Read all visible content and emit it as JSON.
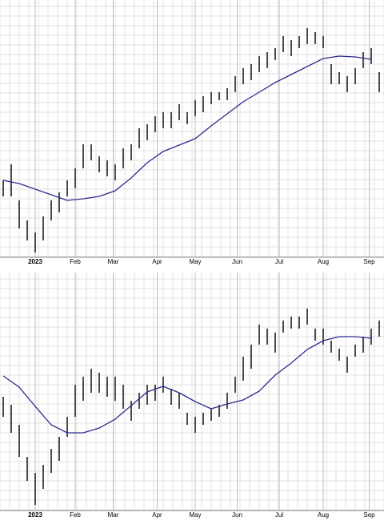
{
  "chart_data": [
    {
      "type": "ohlc",
      "bar_color": "#000000",
      "ma_color": "#2b2b8f",
      "grid": true,
      "xlim": [
        -17.6,
        174.4
      ],
      "ylim": [
        0,
        320
      ],
      "xticks": [
        {
          "value": 0,
          "label": "2023"
        },
        {
          "value": 20,
          "label": "Feb"
        },
        {
          "value": 39,
          "label": "Mar"
        },
        {
          "value": 61,
          "label": "Apr"
        },
        {
          "value": 80,
          "label": "May"
        },
        {
          "value": 101,
          "label": "Jun"
        },
        {
          "value": 122,
          "label": "Jul"
        },
        {
          "value": 144,
          "label": "Aug"
        },
        {
          "value": 167,
          "label": "Sep"
        }
      ],
      "x": [
        -16,
        -12,
        -8,
        -4,
        0,
        4,
        8,
        12,
        16,
        20,
        24,
        28,
        32,
        36,
        40,
        44,
        48,
        52,
        56,
        60,
        64,
        68,
        72,
        76,
        80,
        84,
        88,
        92,
        96,
        100,
        104,
        108,
        112,
        116,
        120,
        124,
        128,
        132,
        136,
        140,
        144,
        148,
        152,
        156,
        160,
        164,
        168,
        172
      ],
      "high": [
        95,
        115,
        70,
        45,
        30,
        50,
        70,
        80,
        95,
        110,
        140,
        140,
        125,
        120,
        115,
        135,
        140,
        160,
        165,
        175,
        180,
        180,
        190,
        180,
        195,
        200,
        205,
        205,
        210,
        225,
        235,
        240,
        250,
        255,
        260,
        275,
        270,
        275,
        285,
        280,
        275,
        240,
        230,
        225,
        235,
        255,
        260,
        230
      ],
      "low": [
        75,
        75,
        35,
        20,
        5,
        20,
        45,
        55,
        75,
        85,
        110,
        120,
        105,
        100,
        95,
        110,
        120,
        135,
        145,
        155,
        160,
        160,
        170,
        165,
        175,
        180,
        190,
        195,
        195,
        205,
        215,
        220,
        230,
        235,
        245,
        255,
        250,
        260,
        265,
        265,
        260,
        215,
        215,
        205,
        215,
        235,
        240,
        205
      ],
      "ma_x": [
        -16,
        -8,
        0,
        8,
        16,
        24,
        32,
        40,
        48,
        56,
        64,
        72,
        80,
        88,
        96,
        104,
        112,
        120,
        128,
        136,
        144,
        152,
        160,
        168
      ],
      "ma_values": [
        95,
        91,
        84,
        77,
        70,
        72,
        75,
        82,
        98,
        117,
        131,
        139,
        147,
        163,
        178,
        193,
        205,
        217,
        227,
        237,
        247,
        250,
        249,
        246
      ]
    },
    {
      "type": "ohlc",
      "bar_color": "#000000",
      "ma_color": "#2b2b8f",
      "grid": true,
      "xlim": [
        -17.6,
        174.4
      ],
      "ylim": [
        0,
        296
      ],
      "xticks": [
        {
          "value": 0,
          "label": "2023"
        },
        {
          "value": 20,
          "label": "Feb"
        },
        {
          "value": 39,
          "label": "Mar"
        },
        {
          "value": 61,
          "label": "Apr"
        },
        {
          "value": 80,
          "label": "May"
        },
        {
          "value": 101,
          "label": "Jun"
        },
        {
          "value": 122,
          "label": "Jul"
        },
        {
          "value": 144,
          "label": "Aug"
        },
        {
          "value": 167,
          "label": "Sep"
        }
      ],
      "x": [
        -16,
        -12,
        -8,
        -4,
        0,
        4,
        8,
        12,
        16,
        20,
        24,
        28,
        32,
        36,
        40,
        44,
        48,
        52,
        56,
        60,
        64,
        68,
        72,
        76,
        80,
        84,
        88,
        92,
        96,
        100,
        104,
        108,
        112,
        116,
        120,
        124,
        128,
        132,
        136,
        140,
        144,
        148,
        152,
        156,
        160,
        164,
        168,
        172
      ],
      "high": [
        141,
        131,
        106,
        66,
        46,
        56,
        76,
        91,
        116,
        156,
        166,
        176,
        171,
        166,
        166,
        156,
        136,
        146,
        156,
        156,
        166,
        151,
        146,
        121,
        116,
        121,
        126,
        131,
        146,
        166,
        191,
        206,
        231,
        226,
        221,
        236,
        241,
        241,
        251,
        226,
        226,
        211,
        201,
        191,
        206,
        216,
        226,
        236
      ],
      "low": [
        116,
        96,
        66,
        36,
        6,
        26,
        46,
        61,
        91,
        116,
        136,
        146,
        146,
        141,
        136,
        126,
        111,
        126,
        131,
        136,
        146,
        131,
        126,
        106,
        96,
        106,
        111,
        116,
        126,
        146,
        161,
        176,
        206,
        206,
        196,
        221,
        226,
        226,
        231,
        211,
        206,
        196,
        186,
        171,
        191,
        196,
        206,
        216
      ],
      "ma_x": [
        -16,
        -8,
        0,
        8,
        16,
        24,
        32,
        40,
        48,
        56,
        64,
        72,
        80,
        88,
        96,
        104,
        112,
        120,
        128,
        136,
        144,
        152,
        160,
        168
      ],
      "ma_values": [
        167,
        153,
        129,
        106,
        96,
        96,
        102,
        113,
        130,
        147,
        154,
        146,
        135,
        126,
        132,
        137,
        148,
        168,
        183,
        200,
        211,
        216,
        216,
        214
      ]
    }
  ]
}
